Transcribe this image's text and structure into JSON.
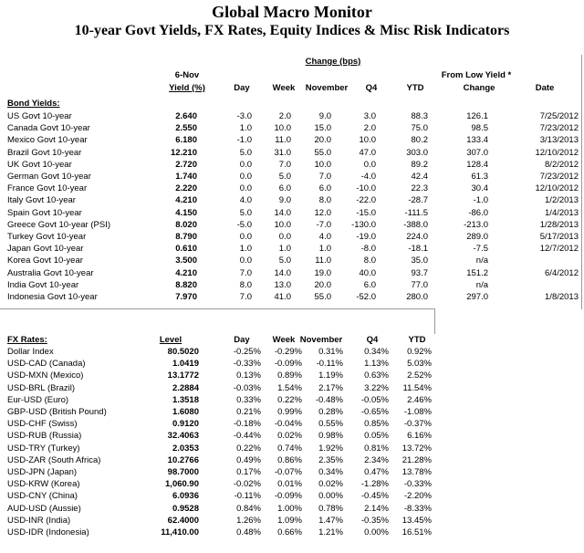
{
  "header": {
    "title": "Global Macro Monitor",
    "subtitle": "10-year Govt Yields, FX Rates, Equity Indices & Misc Risk Indicators"
  },
  "bonds": {
    "group_header": "Change (bps)",
    "date_header": "6-Nov",
    "low_header": "From Low Yield *",
    "section": "Bond Yields:",
    "columns": [
      "Yield (%)",
      "Day",
      "Week",
      "November",
      "Q4",
      "YTD",
      "Change",
      "Date"
    ],
    "rows": [
      [
        "US Govt 10-year",
        "2.640",
        "-3.0",
        "2.0",
        "9.0",
        "3.0",
        "88.3",
        "126.1",
        "7/25/2012"
      ],
      [
        "Canada Govt 10-year",
        "2.550",
        "1.0",
        "10.0",
        "15.0",
        "2.0",
        "75.0",
        "98.5",
        "7/23/2012"
      ],
      [
        "Mexico Govt 10-year",
        "6.180",
        "-1.0",
        "11.0",
        "20.0",
        "10.0",
        "80.2",
        "133.4",
        "3/13/2013"
      ],
      [
        "Brazil Govt 10-year",
        "12.210",
        "5.0",
        "31.0",
        "55.0",
        "47.0",
        "303.0",
        "307.0",
        "12/10/2012"
      ],
      [
        "UK Govt 10-year",
        "2.720",
        "0.0",
        "7.0",
        "10.0",
        "0.0",
        "89.2",
        "128.4",
        "8/2/2012"
      ],
      [
        "German Govt 10-year",
        "1.740",
        "0.0",
        "5.0",
        "7.0",
        "-4.0",
        "42.4",
        "61.3",
        "7/23/2012"
      ],
      [
        "France Govt 10-year",
        "2.220",
        "0.0",
        "6.0",
        "6.0",
        "-10.0",
        "22.3",
        "30.4",
        "12/10/2012"
      ],
      [
        "Italy Govt 10-year",
        "4.210",
        "4.0",
        "9.0",
        "8.0",
        "-22.0",
        "-28.7",
        "-1.0",
        "1/2/2013"
      ],
      [
        "Spain Govt 10-year",
        "4.150",
        "5.0",
        "14.0",
        "12.0",
        "-15.0",
        "-111.5",
        "-86.0",
        "1/4/2013"
      ],
      [
        "Greece Govt 10-year (PSI)",
        "8.020",
        "-5.0",
        "10.0",
        "-7.0",
        "-130.0",
        "-388.0",
        "-213.0",
        "1/28/2013"
      ],
      [
        "Turkey Govt 10-year",
        "8.790",
        "0.0",
        "0.0",
        "4.0",
        "-19.0",
        "224.0",
        "289.0",
        "5/17/2013"
      ],
      [
        "Japan Govt 10-year",
        "0.610",
        "1.0",
        "1.0",
        "1.0",
        "-8.0",
        "-18.1",
        "-7.5",
        "12/7/2012"
      ],
      [
        "Korea Govt 10-year",
        "3.500",
        "0.0",
        "5.0",
        "11.0",
        "8.0",
        "35.0",
        "n/a"
      ],
      [
        "Australia Govt 10-year",
        "4.210",
        "7.0",
        "14.0",
        "19.0",
        "40.0",
        "93.7",
        "151.2",
        "6/4/2012"
      ],
      [
        "India Govt 10-year",
        "8.820",
        "8.0",
        "13.0",
        "20.0",
        "6.0",
        "77.0",
        "n/a"
      ],
      [
        "Indonesia Govt 10-year",
        "7.970",
        "7.0",
        "41.0",
        "55.0",
        "-52.0",
        "280.0",
        "297.0",
        "1/8/2013"
      ]
    ]
  },
  "fx": {
    "section": "FX Rates:",
    "columns": [
      "Level",
      "Day",
      "Week",
      "November",
      "Q4",
      "YTD"
    ],
    "rows": [
      [
        "Dollar Index",
        "80.5020",
        "-0.25%",
        "-0.29%",
        "0.31%",
        "0.34%",
        "0.92%"
      ],
      [
        "USD-CAD (Canada)",
        "1.0419",
        "-0.33%",
        "-0.09%",
        "-0.11%",
        "1.13%",
        "5.03%"
      ],
      [
        "USD-MXN (Mexico)",
        "13.1772",
        "0.13%",
        "0.89%",
        "1.19%",
        "0.63%",
        "2.52%"
      ],
      [
        "USD-BRL (Brazil)",
        "2.2884",
        "-0.03%",
        "1.54%",
        "2.17%",
        "3.22%",
        "11.54%"
      ],
      [
        "Eur-USD (Euro)",
        "1.3518",
        "0.33%",
        "0.22%",
        "-0.48%",
        "-0.05%",
        "2.46%"
      ],
      [
        "GBP-USD (British Pound)",
        "1.6080",
        "0.21%",
        "0.99%",
        "0.28%",
        "-0.65%",
        "-1.08%"
      ],
      [
        "USD-CHF (Swiss)",
        "0.9120",
        "-0.18%",
        "-0.04%",
        "0.55%",
        "0.85%",
        "-0.37%"
      ],
      [
        "USD-RUB (Russia)",
        "32.4063",
        "-0.44%",
        "0.02%",
        "0.98%",
        "0.05%",
        "6.16%"
      ],
      [
        "USD-TRY (Turkey)",
        "2.0353",
        "0.22%",
        "0.74%",
        "1.92%",
        "0.81%",
        "13.72%"
      ],
      [
        "USD-ZAR (South Africa)",
        "10.2766",
        "0.49%",
        "0.86%",
        "2.35%",
        "2.34%",
        "21.28%"
      ],
      [
        "USD-JPN (Japan)",
        "98.7000",
        "0.17%",
        "-0.07%",
        "0.34%",
        "0.47%",
        "13.78%"
      ],
      [
        "USD-KRW (Korea)",
        "1,060.90",
        "-0.02%",
        "0.01%",
        "0.02%",
        "-1.28%",
        "-0.33%"
      ],
      [
        "USD-CNY (China)",
        "6.0936",
        "-0.11%",
        "-0.09%",
        "0.00%",
        "-0.45%",
        "-2.20%"
      ],
      [
        "AUD-USD (Aussie)",
        "0.9528",
        "0.84%",
        "1.00%",
        "0.78%",
        "2.14%",
        "-8.33%"
      ],
      [
        "USD-INR (India)",
        "62.4000",
        "1.26%",
        "1.09%",
        "1.47%",
        "-0.35%",
        "13.45%"
      ],
      [
        "USD-IDR (Indonesia)",
        "11,410.00",
        "0.48%",
        "0.66%",
        "1.21%",
        "0.00%",
        "16.51%"
      ]
    ]
  }
}
